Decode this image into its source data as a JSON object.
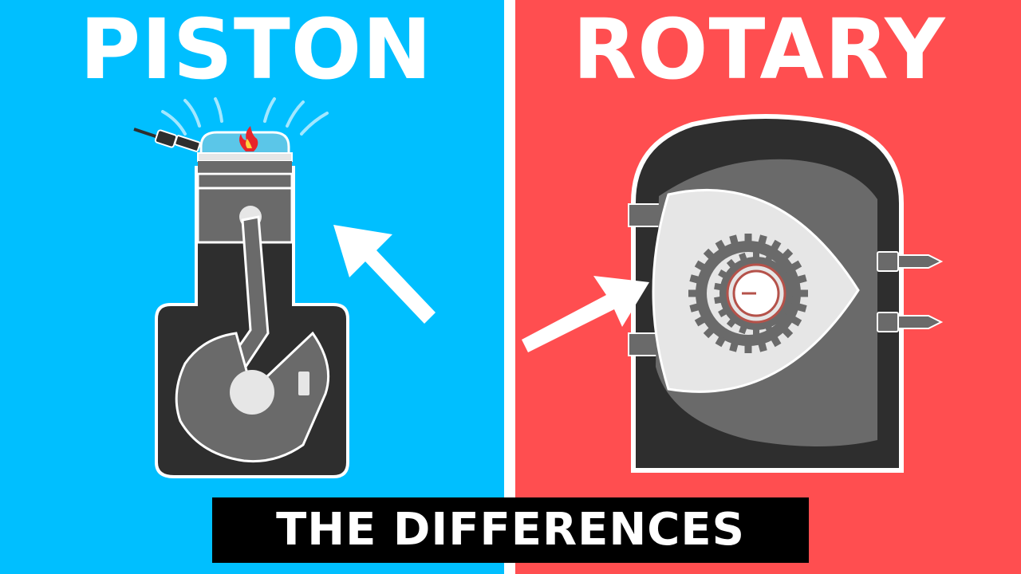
{
  "left": {
    "title": "PISTON",
    "background": "#00BFFF"
  },
  "right": {
    "title": "ROTARY",
    "background": "#FF4E50"
  },
  "caption": "THE DIFFERENCES",
  "colors": {
    "engine_dark": "#2E2E2E",
    "engine_mid": "#6A6A6A",
    "engine_light": "#E6E6E6",
    "outline": "#FFFFFF",
    "flame": "#E8242A",
    "chamber_glass": "#5BC6E8",
    "gear_ring": "#B5524A"
  },
  "icons": {
    "piston_arrow": "arrow-up-left-icon",
    "rotary_arrow": "arrow-up-right-icon",
    "spark_plug": "spark-plug-icon",
    "flame": "flame-icon"
  }
}
